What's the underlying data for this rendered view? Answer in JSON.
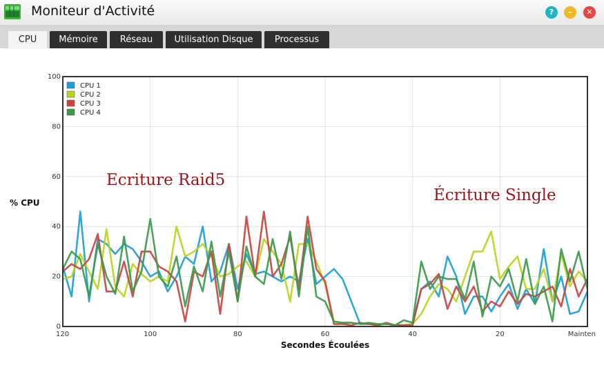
{
  "window": {
    "title": "Moniteur d'Activité"
  },
  "tabs": [
    {
      "label": "CPU",
      "active": true
    },
    {
      "label": "Mémoire",
      "active": false
    },
    {
      "label": "Réseau",
      "active": false
    },
    {
      "label": "Utilisation Disque",
      "active": false
    },
    {
      "label": "Processus",
      "active": false
    }
  ],
  "window_buttons": [
    {
      "icon": "help-icon",
      "color": "#1fb5c8",
      "glyph": "?"
    },
    {
      "icon": "minimize-icon",
      "color": "#f2b824",
      "glyph": "–"
    },
    {
      "icon": "close-icon",
      "color": "#e84646",
      "glyph": "✕"
    }
  ],
  "chart_data": {
    "type": "line",
    "xlabel": "Secondes Écoulées",
    "ylabel": "% CPU",
    "xlim": [
      120,
      0
    ],
    "ylim": [
      0,
      100
    ],
    "x_ticks": [
      "120",
      "100",
      "80",
      "60",
      "40",
      "20",
      "Mainten"
    ],
    "y_ticks": [
      "0",
      "20",
      "40",
      "60",
      "80",
      "100"
    ],
    "grid": true,
    "legend_position": "top-left",
    "annotations": [
      {
        "text": "Ecriture Raid5",
        "x": 106,
        "y": 58
      },
      {
        "text": "Écriture Single",
        "x": 26,
        "y": 52
      }
    ],
    "x": [
      120,
      118,
      116,
      114,
      112,
      110,
      108,
      106,
      104,
      102,
      100,
      98,
      96,
      94,
      92,
      90,
      88,
      86,
      84,
      82,
      80,
      78,
      76,
      74,
      72,
      70,
      68,
      66,
      64,
      62,
      60,
      58,
      56,
      54,
      52,
      50,
      48,
      46,
      44,
      42,
      40,
      38,
      36,
      34,
      32,
      30,
      28,
      26,
      24,
      22,
      20,
      18,
      16,
      14,
      12,
      10,
      8,
      6,
      4,
      2,
      0
    ],
    "series": [
      {
        "name": "CPU 1",
        "color": "#1a9fd9",
        "values": [
          24,
          12,
          46,
          10,
          35,
          33,
          29,
          33,
          31,
          26,
          20,
          22,
          14,
          20,
          28,
          25,
          40,
          18,
          22,
          33,
          15,
          29,
          21,
          22,
          20,
          18,
          20,
          18,
          35,
          17,
          20,
          23,
          19,
          10,
          1,
          1,
          0.5,
          1,
          0.5,
          0.5,
          1,
          15,
          18,
          12,
          28,
          20,
          5,
          12,
          12,
          6,
          12,
          17,
          7,
          15,
          9,
          31,
          10,
          20,
          5,
          6,
          14
        ]
      },
      {
        "name": "CPU 2",
        "color": "#bcd21c",
        "values": [
          19,
          20,
          29,
          22,
          15,
          39,
          16,
          12,
          25,
          21,
          18,
          20,
          18,
          40,
          28,
          30,
          33,
          28,
          20,
          21,
          24,
          26,
          20,
          35,
          30,
          25,
          10,
          33,
          33,
          26,
          17,
          2,
          1.5,
          1.5,
          1,
          1.5,
          0.5,
          1,
          0.5,
          0.5,
          1,
          5,
          12,
          17,
          15,
          10,
          20,
          30,
          30,
          38,
          19,
          24,
          28,
          15,
          15,
          23,
          10,
          29,
          16,
          22,
          18
        ]
      },
      {
        "name": "CPU 3",
        "color": "#c9433f",
        "values": [
          22,
          25,
          23,
          27,
          37,
          14,
          14,
          26,
          12,
          30,
          30,
          24,
          22,
          18,
          2,
          22,
          20,
          30,
          5,
          33,
          10,
          44,
          20,
          46,
          20,
          25,
          36,
          15,
          44,
          23,
          18,
          1,
          1,
          0.5,
          1.5,
          1,
          0.5,
          1.5,
          0.5,
          0.5,
          0.5,
          15,
          17,
          21,
          7,
          16,
          10,
          16,
          6,
          10,
          8,
          14,
          9,
          13,
          12,
          14,
          16,
          8,
          23,
          12,
          19
        ]
      },
      {
        "name": "CPU 4",
        "color": "#3a9a4c",
        "values": [
          23,
          30,
          27,
          12,
          33,
          20,
          13,
          36,
          14,
          22,
          43,
          20,
          16,
          28,
          8,
          24,
          14,
          34,
          12,
          30,
          10,
          32,
          20,
          17,
          35,
          19,
          38,
          12,
          40,
          12,
          10,
          2,
          1.5,
          1.5,
          1,
          1.5,
          1,
          1,
          0.5,
          2.5,
          1.5,
          26,
          15,
          20,
          19,
          19,
          11,
          26,
          4,
          20,
          16,
          23,
          10,
          27,
          9,
          16,
          2,
          31,
          18,
          30,
          15
        ]
      }
    ]
  }
}
